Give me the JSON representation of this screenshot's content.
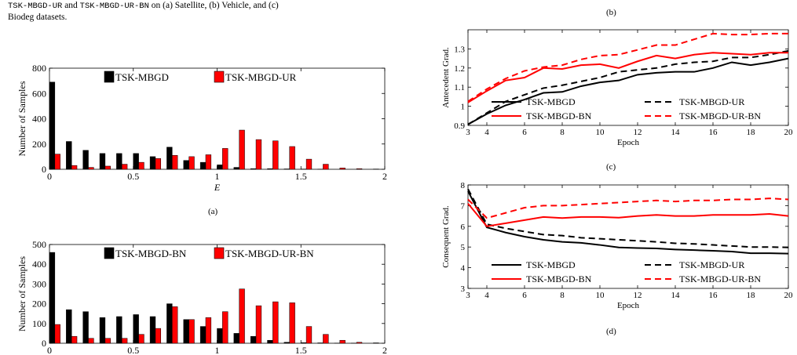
{
  "caption": {
    "line1_a": "TSK-MBGD-UR",
    "line1_b": " and ",
    "line1_c": "TSK-MBGD-UR-BN",
    "line1_d": " on (a) Satellite, (b) Vehicle, and (c)",
    "line2": "Biodeg datasets."
  },
  "sublabels": {
    "a": "(a)",
    "b": "(b)",
    "c": "(c)",
    "d": "(d)"
  },
  "chart_data": [
    {
      "id": "a",
      "type": "bar",
      "xlabel": "E",
      "ylabel": "Number of Samples",
      "ylim": [
        0,
        800
      ],
      "xlim": [
        0,
        2
      ],
      "xticks": [
        "0",
        "0.5",
        "1",
        "1.5",
        "2"
      ],
      "yticks": [
        "0",
        "200",
        "400",
        "600",
        "800"
      ],
      "x": [
        0.0,
        0.1,
        0.2,
        0.3,
        0.4,
        0.5,
        0.6,
        0.7,
        0.8,
        0.9,
        1.0,
        1.1,
        1.2,
        1.3,
        1.4,
        1.5,
        1.6,
        1.7,
        1.8,
        1.9
      ],
      "series": [
        {
          "name": "TSK-MBGD",
          "color": "#000000",
          "values": [
            690,
            220,
            150,
            125,
            125,
            125,
            100,
            175,
            70,
            55,
            35,
            15,
            5,
            5,
            3,
            2,
            1,
            0,
            0,
            0
          ]
        },
        {
          "name": "TSK-MBGD-UR",
          "color": "#ff0000",
          "values": [
            120,
            30,
            15,
            25,
            40,
            55,
            85,
            110,
            100,
            115,
            165,
            310,
            235,
            225,
            180,
            80,
            40,
            10,
            5,
            2
          ]
        }
      ],
      "legend": "top-right"
    },
    {
      "id": "b",
      "type": "bar",
      "xlabel": "",
      "ylabel": "Number of Samples",
      "ylim": [
        0,
        500
      ],
      "xlim": [
        0,
        2
      ],
      "xticks": [
        "0",
        "0.5",
        "1",
        "1.5",
        "2"
      ],
      "yticks": [
        "0",
        "100",
        "200",
        "300",
        "400",
        "500"
      ],
      "x": [
        0.0,
        0.1,
        0.2,
        0.3,
        0.4,
        0.5,
        0.6,
        0.7,
        0.8,
        0.9,
        1.0,
        1.1,
        1.2,
        1.3,
        1.4,
        1.5,
        1.6,
        1.7,
        1.8,
        1.9
      ],
      "series": [
        {
          "name": "TSK-MBGD-BN",
          "color": "#000000",
          "values": [
            460,
            170,
            160,
            130,
            135,
            145,
            135,
            200,
            120,
            85,
            75,
            50,
            35,
            15,
            5,
            3,
            2,
            1,
            1,
            0
          ]
        },
        {
          "name": "TSK-MBGD-UR-BN",
          "color": "#ff0000",
          "values": [
            95,
            35,
            25,
            25,
            25,
            45,
            75,
            185,
            120,
            130,
            160,
            275,
            190,
            210,
            205,
            85,
            45,
            15,
            5,
            2
          ]
        }
      ],
      "legend": "top-right"
    },
    {
      "id": "c",
      "type": "line",
      "xlabel": "Epoch",
      "ylabel": "Antecedent Grad.",
      "xlim": [
        3,
        20
      ],
      "ylim": [
        0.9,
        1.4
      ],
      "xticks": [
        "3",
        "4",
        "6",
        "8",
        "10",
        "12",
        "14",
        "16",
        "18",
        "20"
      ],
      "yticks": [
        "0.9",
        "1",
        "1.1",
        "1.2",
        "1.3"
      ],
      "x": [
        3,
        4,
        5,
        6,
        7,
        8,
        9,
        10,
        11,
        12,
        13,
        14,
        15,
        16,
        17,
        18,
        19,
        20
      ],
      "series": [
        {
          "name": "TSK-MBGD",
          "color": "#000000",
          "dash": "solid",
          "values": [
            0.905,
            0.96,
            1.005,
            1.035,
            1.07,
            1.075,
            1.105,
            1.125,
            1.135,
            1.165,
            1.175,
            1.18,
            1.18,
            1.2,
            1.23,
            1.215,
            1.23,
            1.25
          ]
        },
        {
          "name": "TSK-MBGD-UR",
          "color": "#000000",
          "dash": "dashed",
          "values": [
            0.905,
            0.965,
            1.025,
            1.06,
            1.095,
            1.11,
            1.13,
            1.15,
            1.18,
            1.19,
            1.2,
            1.22,
            1.23,
            1.235,
            1.255,
            1.255,
            1.27,
            1.29
          ]
        },
        {
          "name": "TSK-MBGD-BN",
          "color": "#ff0000",
          "dash": "solid",
          "values": [
            1.02,
            1.08,
            1.135,
            1.15,
            1.2,
            1.195,
            1.215,
            1.22,
            1.2,
            1.235,
            1.265,
            1.25,
            1.27,
            1.28,
            1.275,
            1.27,
            1.28,
            1.28
          ]
        },
        {
          "name": "TSK-MBGD-UR-BN",
          "color": "#ff0000",
          "dash": "dashed",
          "values": [
            1.025,
            1.09,
            1.145,
            1.185,
            1.205,
            1.215,
            1.245,
            1.265,
            1.27,
            1.295,
            1.32,
            1.32,
            1.35,
            1.38,
            1.375,
            1.375,
            1.38,
            1.38
          ]
        }
      ],
      "legend": "bottom"
    },
    {
      "id": "d",
      "type": "line",
      "xlabel": "Epoch",
      "ylabel": "Consequent Grad.",
      "xlim": [
        3,
        20
      ],
      "ylim": [
        3,
        8
      ],
      "xticks": [
        "3",
        "4",
        "6",
        "8",
        "10",
        "12",
        "14",
        "16",
        "18",
        "20"
      ],
      "yticks": [
        "3",
        "4",
        "5",
        "6",
        "7",
        "8"
      ],
      "x": [
        3,
        4,
        5,
        6,
        7,
        8,
        9,
        10,
        11,
        12,
        13,
        14,
        15,
        16,
        17,
        18,
        19,
        20
      ],
      "series": [
        {
          "name": "TSK-MBGD",
          "color": "#000000",
          "dash": "solid",
          "values": [
            7.7,
            5.95,
            5.7,
            5.5,
            5.35,
            5.25,
            5.2,
            5.1,
            4.98,
            4.95,
            4.93,
            4.88,
            4.85,
            4.82,
            4.78,
            4.7,
            4.7,
            4.68
          ]
        },
        {
          "name": "TSK-MBGD-UR",
          "color": "#000000",
          "dash": "dashed",
          "values": [
            7.8,
            6.1,
            5.9,
            5.75,
            5.6,
            5.55,
            5.45,
            5.4,
            5.35,
            5.3,
            5.25,
            5.18,
            5.15,
            5.1,
            5.05,
            5.0,
            5.0,
            4.98
          ]
        },
        {
          "name": "TSK-MBGD-BN",
          "color": "#ff0000",
          "dash": "solid",
          "values": [
            7.1,
            6.0,
            6.15,
            6.3,
            6.45,
            6.4,
            6.45,
            6.45,
            6.42,
            6.5,
            6.55,
            6.5,
            6.5,
            6.55,
            6.55,
            6.55,
            6.6,
            6.5
          ]
        },
        {
          "name": "TSK-MBGD-UR-BN",
          "color": "#ff0000",
          "dash": "dashed",
          "values": [
            7.3,
            6.4,
            6.65,
            6.9,
            7.0,
            7.0,
            7.05,
            7.1,
            7.15,
            7.2,
            7.25,
            7.2,
            7.25,
            7.25,
            7.3,
            7.3,
            7.35,
            7.3
          ]
        }
      ],
      "legend": "bottom"
    }
  ]
}
